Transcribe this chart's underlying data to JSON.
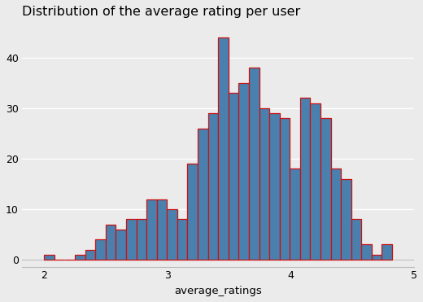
{
  "title": "Distribution of the average rating per user",
  "xlabel": "average_ratings",
  "bar_color": "#4a80ae",
  "edge_color": "#cc1111",
  "background_color": "#ebebeb",
  "grid_color": "#ffffff",
  "bar_heights": [
    1,
    0,
    0,
    1,
    2,
    4,
    7,
    6,
    8,
    8,
    12,
    12,
    10,
    8,
    19,
    26,
    29,
    44,
    33,
    35,
    38,
    30,
    29,
    28,
    18,
    32,
    31,
    28,
    18,
    16,
    8,
    3,
    1,
    3
  ],
  "bin_start": 2.0,
  "bin_width": 0.083,
  "xlim": [
    1.82,
    4.98
  ],
  "ylim": [
    -1.5,
    47
  ],
  "yticks": [
    0,
    10,
    20,
    30,
    40
  ],
  "xticks": [
    2,
    3,
    4,
    5
  ],
  "title_fontsize": 11.5,
  "label_fontsize": 9.5,
  "tick_fontsize": 9
}
